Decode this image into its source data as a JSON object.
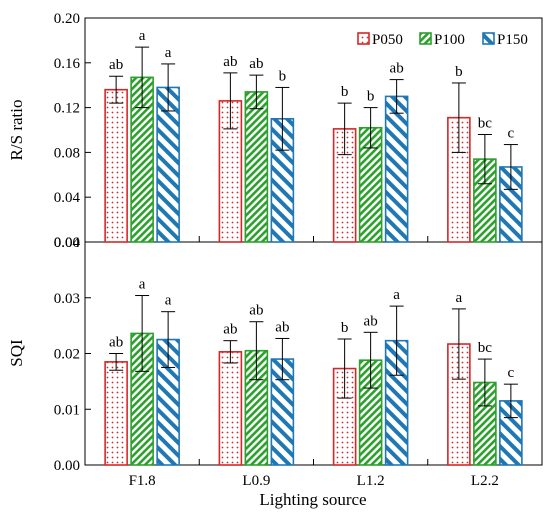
{
  "xlabel": "Lighting source",
  "legend": {
    "placement": "top-right of upper panel",
    "entries": [
      {
        "name": "P050",
        "color": "#d62728",
        "pattern": "dots"
      },
      {
        "name": "P100",
        "color": "#2ca02c",
        "pattern": "diagonal-hatch"
      },
      {
        "name": "P150",
        "color": "#1f77b4",
        "pattern": "wide-diagonal-stripes"
      }
    ]
  },
  "chart_data": [
    {
      "type": "bar",
      "panel": "top",
      "ylabel": "R/S ratio",
      "ylim": [
        0,
        0.2
      ],
      "yticks": [
        "0.00",
        "0.04",
        "0.08",
        "0.12",
        "0.16",
        "0.20"
      ],
      "yticks_values": [
        0,
        0.04,
        0.08,
        0.12,
        0.16,
        0.2
      ],
      "categories": [
        "F1.8",
        "L0.9",
        "L1.2",
        "L2.2"
      ],
      "series": [
        {
          "name": "P050",
          "values": [
            0.136,
            0.126,
            0.101,
            0.111
          ],
          "errors": [
            0.012,
            0.025,
            0.023,
            0.031
          ],
          "letters": [
            "ab",
            "ab",
            "b",
            "b"
          ]
        },
        {
          "name": "P100",
          "values": [
            0.147,
            0.134,
            0.102,
            0.074
          ],
          "errors": [
            0.027,
            0.015,
            0.018,
            0.022
          ],
          "letters": [
            "a",
            "ab",
            "b",
            "bc"
          ]
        },
        {
          "name": "P150",
          "values": [
            0.138,
            0.11,
            0.13,
            0.067
          ],
          "errors": [
            0.021,
            0.028,
            0.015,
            0.02
          ],
          "letters": [
            "a",
            "b",
            "ab",
            "c"
          ]
        }
      ]
    },
    {
      "type": "bar",
      "panel": "bottom",
      "ylabel": "SQI",
      "ylim": [
        0,
        0.04
      ],
      "yticks": [
        "0.00",
        "0.01",
        "0.02",
        "0.03",
        "0.04"
      ],
      "yticks_values": [
        0,
        0.01,
        0.02,
        0.03,
        0.04
      ],
      "categories": [
        "F1.8",
        "L0.9",
        "L1.2",
        "L2.2"
      ],
      "series": [
        {
          "name": "P050",
          "values": [
            0.0185,
            0.0203,
            0.0173,
            0.0217
          ],
          "errors": [
            0.0015,
            0.002,
            0.0053,
            0.0063
          ],
          "letters": [
            "ab",
            "ab",
            "b",
            "a"
          ]
        },
        {
          "name": "P100",
          "values": [
            0.0236,
            0.0205,
            0.0188,
            0.0148
          ],
          "errors": [
            0.0068,
            0.0052,
            0.005,
            0.0042
          ],
          "letters": [
            "a",
            "ab",
            "ab",
            "bc"
          ]
        },
        {
          "name": "P150",
          "values": [
            0.0225,
            0.019,
            0.0223,
            0.0115
          ],
          "errors": [
            0.005,
            0.0037,
            0.0062,
            0.003
          ],
          "letters": [
            "a",
            "ab",
            "a",
            "c"
          ]
        }
      ]
    }
  ]
}
